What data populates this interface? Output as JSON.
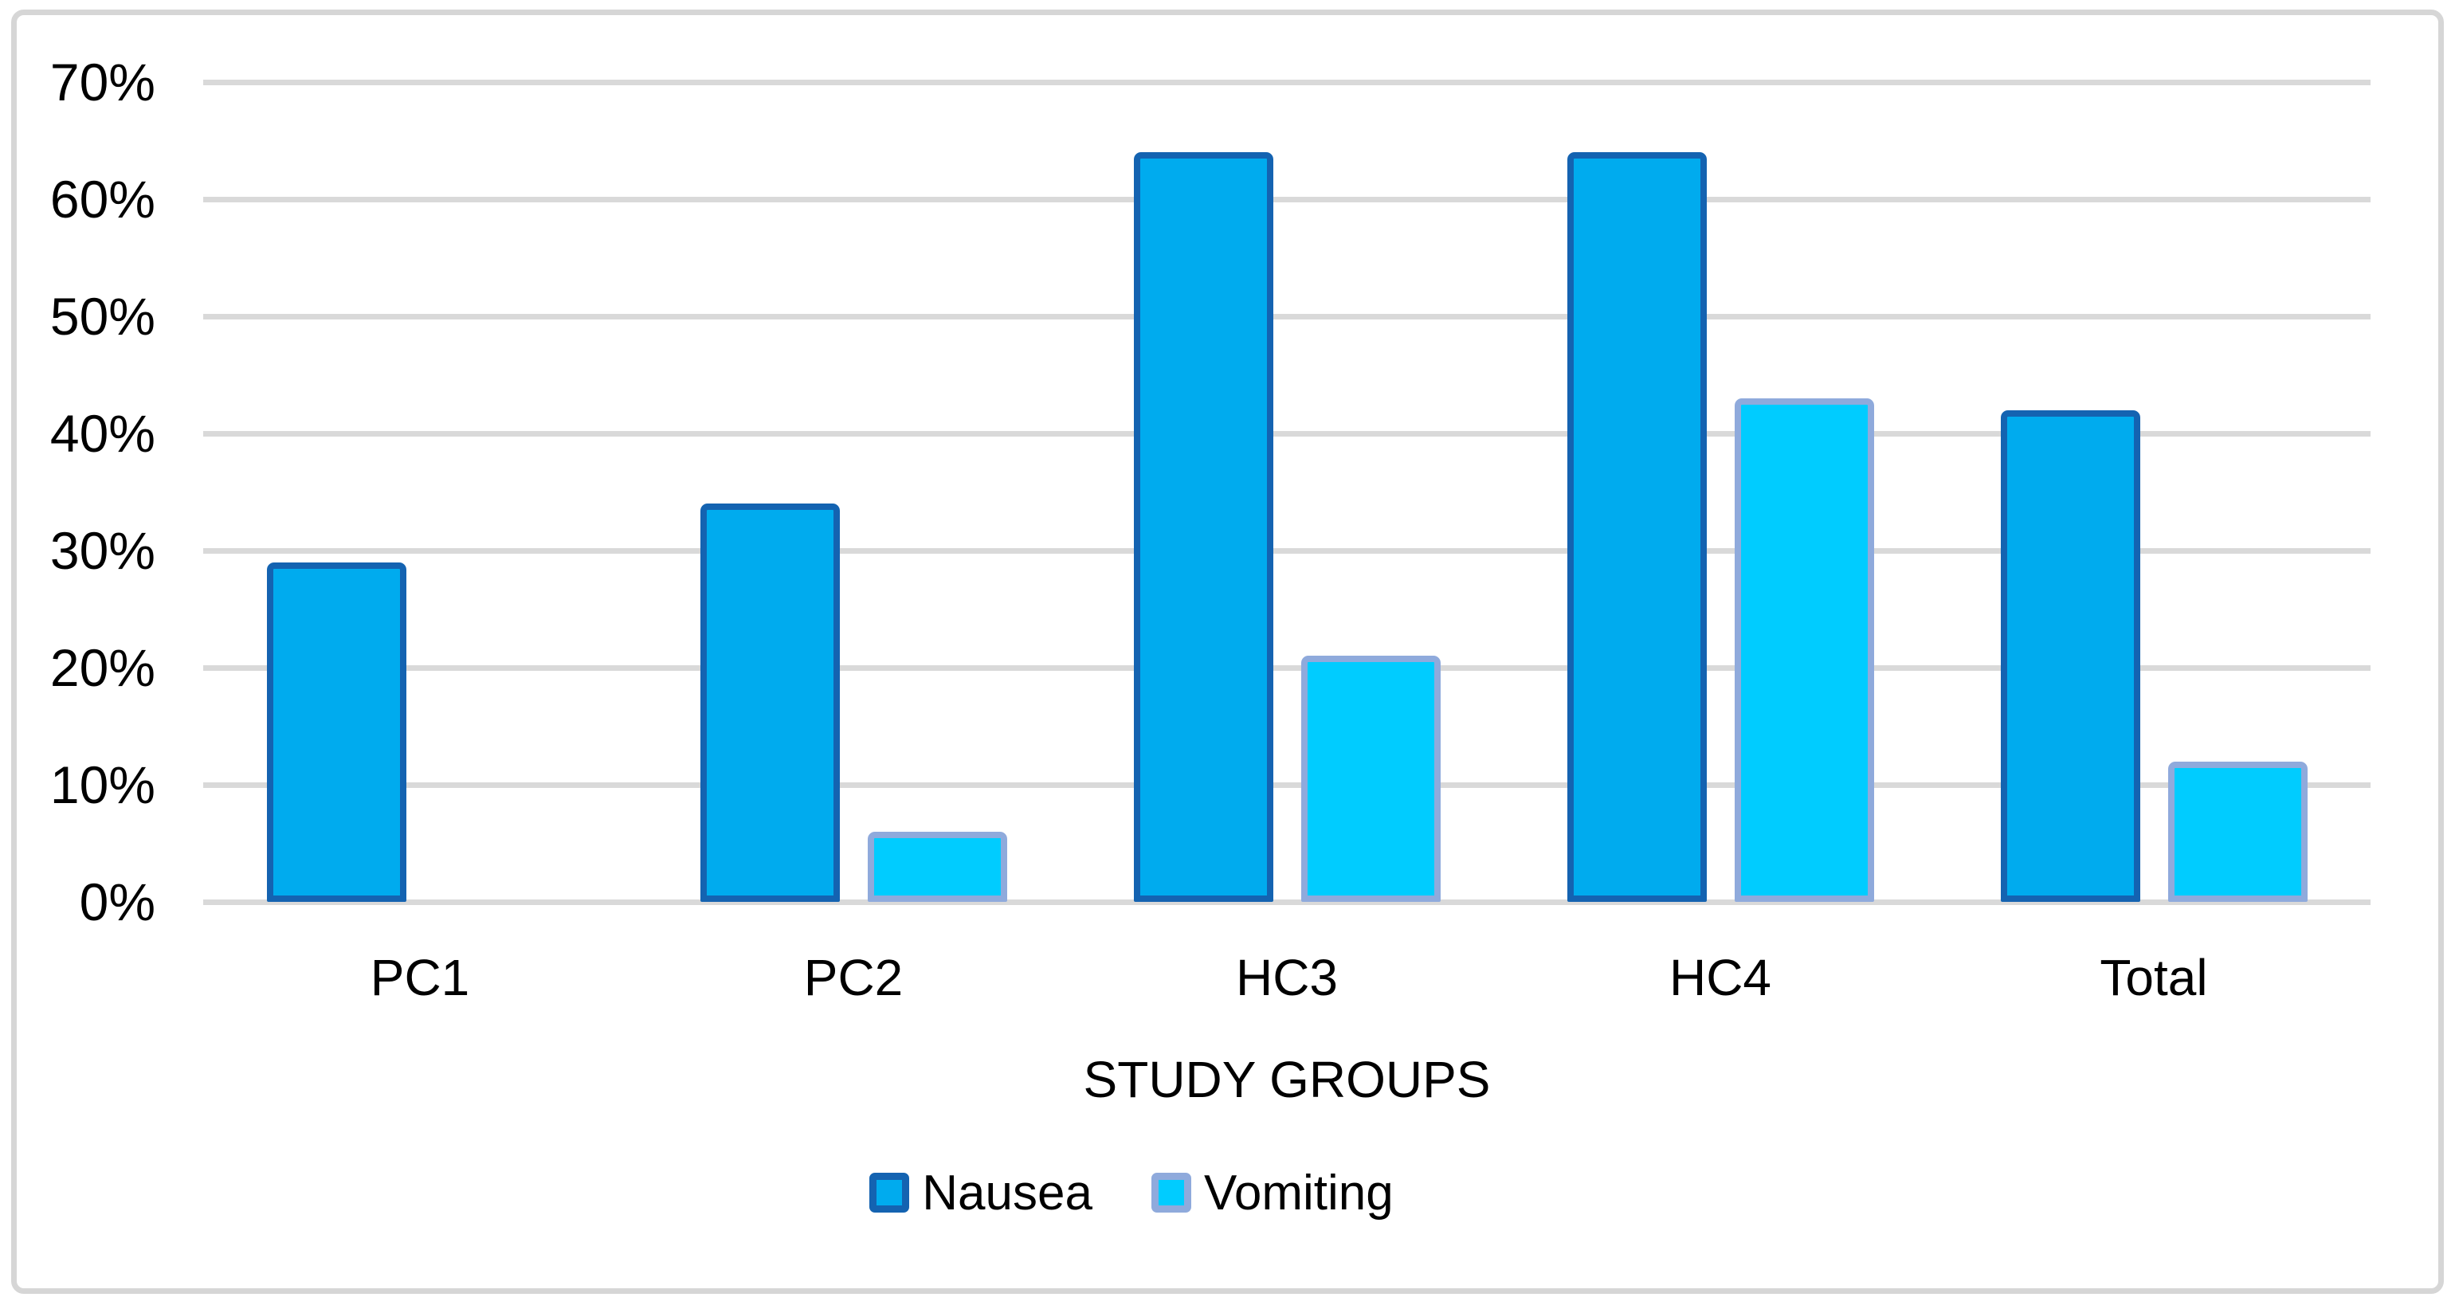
{
  "chart_data": {
    "type": "bar",
    "title": "",
    "xlabel": "STUDY GROUPS",
    "ylabel": "",
    "categories": [
      "PC1",
      "PC2",
      "HC3",
      "HC4",
      "Total"
    ],
    "series": [
      {
        "name": "Nausea",
        "values": [
          29,
          34,
          64,
          64,
          42
        ],
        "fill": "#00ABEE",
        "border": "#1463B1"
      },
      {
        "name": "Vomiting",
        "values": [
          0,
          6,
          21,
          43,
          12
        ],
        "fill": "#00CCFF",
        "border": "#8FAADC"
      }
    ],
    "ylim": [
      0,
      70
    ],
    "ytick_step": 10,
    "ytick_format": "percent",
    "grid": true,
    "legend_position": "bottom",
    "colors": {
      "gridline": "#D9D9D9",
      "axis_line": "#D9D9D9",
      "figure_border": "#D6D6D6",
      "text": "#000000",
      "background": "#FFFFFF"
    }
  }
}
